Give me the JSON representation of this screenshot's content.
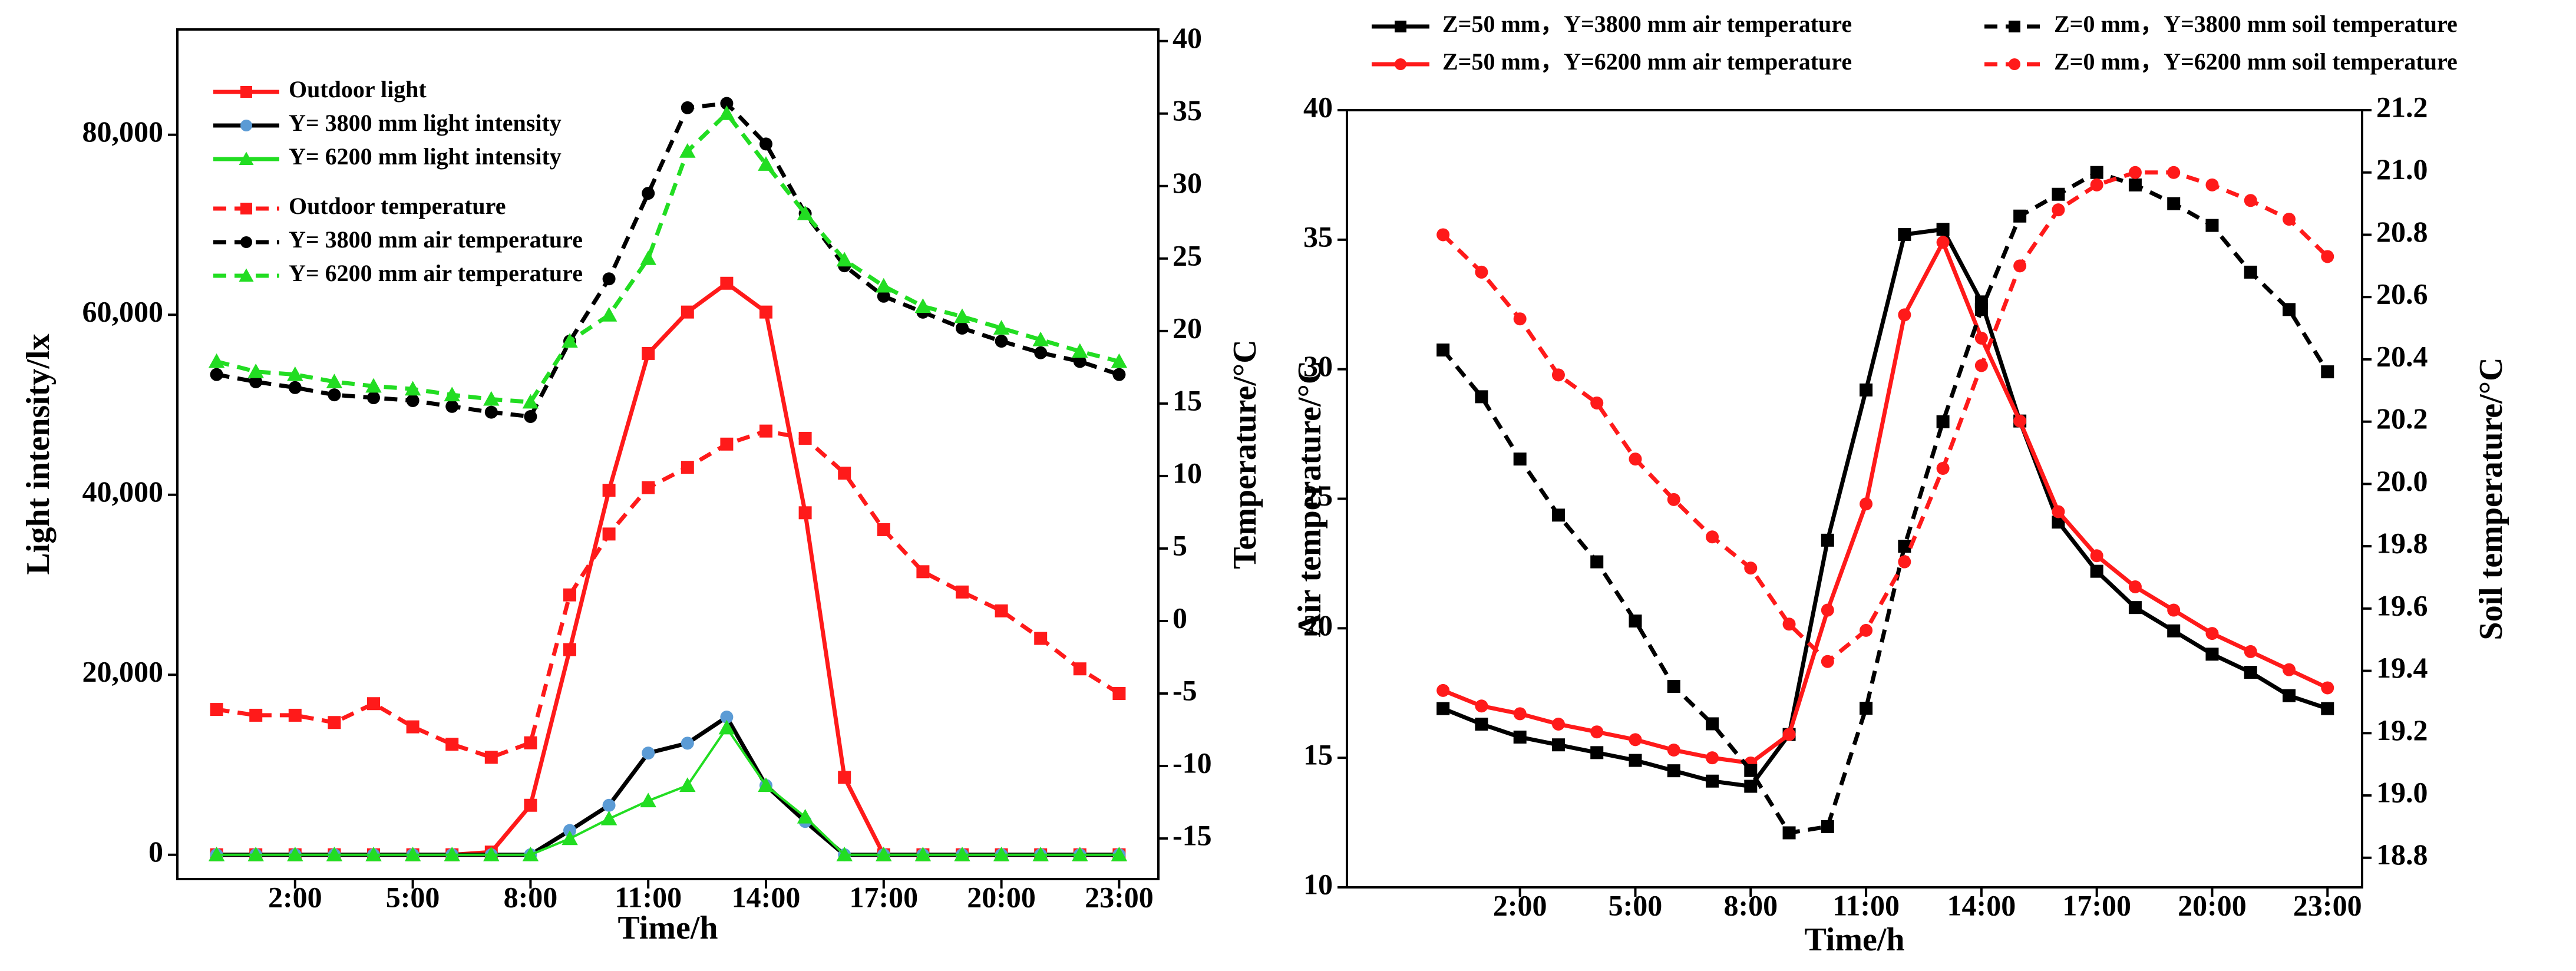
{
  "chart_data": [
    {
      "type": "line",
      "xlabel": "Time/h",
      "ylabel": "Light intensity/lx",
      "y2label": "Temperature/°C",
      "x": [
        0,
        1,
        2,
        3,
        4,
        5,
        6,
        7,
        8,
        9,
        10,
        11,
        12,
        13,
        14,
        15,
        16,
        17,
        18,
        19,
        20,
        21,
        22,
        23
      ],
      "xlim": [
        -1,
        24
      ],
      "xticks": [
        {
          "value": 2,
          "label": "2:00"
        },
        {
          "value": 5,
          "label": "5:00"
        },
        {
          "value": 8,
          "label": "8:00"
        },
        {
          "value": 11,
          "label": "11:00"
        },
        {
          "value": 14,
          "label": "14:00"
        },
        {
          "value": 17,
          "label": "17:00"
        },
        {
          "value": 20,
          "label": "20:00"
        },
        {
          "value": 23,
          "label": "23:00"
        }
      ],
      "ylim": [
        -2700,
        91700
      ],
      "yticks": [
        0,
        {
          "value": 20000,
          "label": "20,000"
        },
        {
          "value": 40000,
          "label": "40,000"
        },
        {
          "value": 60000,
          "label": "60,000"
        },
        {
          "value": 80000,
          "label": "80,000"
        }
      ],
      "y2lim": [
        -17.8,
        40.8
      ],
      "y2ticks": [
        -15,
        -10,
        -5,
        0,
        5,
        10,
        15,
        20,
        25,
        30,
        35,
        40
      ],
      "legend": "upper left",
      "series": [
        {
          "name": "Outdoor light",
          "color": "#ff1a1a",
          "marker": "square",
          "dash": false,
          "values": [
            0,
            0,
            0,
            0,
            0,
            0,
            0,
            300,
            5500,
            22800,
            40500,
            55700,
            60300,
            63500,
            60300,
            38000,
            8600,
            0,
            0,
            0,
            0,
            0,
            0,
            0
          ]
        },
        {
          "name": "Y= 3800 mm light intensity",
          "color": "#000000",
          "marker_color": "#5b9bd5",
          "marker": "circle",
          "dash": false,
          "values": [
            0,
            0,
            0,
            0,
            0,
            0,
            0,
            0,
            0,
            2700,
            5500,
            11300,
            12400,
            15300,
            7700,
            3700,
            0,
            0,
            0,
            0,
            0,
            0,
            0,
            0
          ]
        },
        {
          "name": "Y= 6200 mm light intensity",
          "color": "#22dd22",
          "marker": "triangle",
          "dash": false,
          "values": [
            0,
            0,
            0,
            0,
            0,
            0,
            0,
            0,
            0,
            1800,
            4000,
            6000,
            7700,
            14100,
            7700,
            4200,
            0,
            0,
            0,
            0,
            0,
            0,
            0,
            0
          ]
        },
        {
          "name": "Outdoor temperature",
          "color": "#ff1a1a",
          "marker": "square",
          "dash": true,
          "axis": "y2",
          "values": [
            -6.1,
            -6.5,
            -6.5,
            -7.0,
            -5.7,
            -7.3,
            -8.5,
            -9.4,
            -8.4,
            1.8,
            6.0,
            9.2,
            10.6,
            12.2,
            13.1,
            12.6,
            10.2,
            6.3,
            3.4,
            2.0,
            0.7,
            -1.2,
            -3.3,
            -5.0
          ]
        },
        {
          "name": "Y= 3800 mm air temperature",
          "color": "#000000",
          "marker": "circle",
          "dash": true,
          "axis": "y2",
          "values": [
            17.0,
            16.5,
            16.1,
            15.6,
            15.4,
            15.2,
            14.8,
            14.4,
            14.1,
            19.3,
            23.6,
            29.5,
            35.4,
            35.7,
            32.9,
            28.1,
            24.5,
            22.4,
            21.3,
            20.2,
            19.3,
            18.5,
            17.9,
            17.0
          ]
        },
        {
          "name": "Y= 6200 mm air temperature",
          "color": "#22dd22",
          "marker": "triangle",
          "dash": true,
          "axis": "y2",
          "values": [
            17.9,
            17.2,
            17.0,
            16.5,
            16.2,
            16.0,
            15.6,
            15.3,
            15.1,
            19.3,
            21.1,
            25.0,
            32.4,
            35.0,
            31.5,
            28.1,
            24.9,
            23.1,
            21.7,
            21.0,
            20.2,
            19.4,
            18.6,
            17.9
          ]
        }
      ]
    },
    {
      "type": "line",
      "xlabel": "Time/h",
      "ylabel": "Air temperature/°C",
      "y2label": "Soil temperature/°C",
      "x": [
        0,
        1,
        2,
        3,
        4,
        5,
        6,
        7,
        8,
        9,
        10,
        11,
        12,
        13,
        14,
        15,
        16,
        17,
        18,
        19,
        20,
        21,
        22,
        23
      ],
      "xlim": [
        -2.5,
        23.9
      ],
      "xticks": [
        {
          "value": 2,
          "label": "2:00"
        },
        {
          "value": 5,
          "label": "5:00"
        },
        {
          "value": 8,
          "label": "8:00"
        },
        {
          "value": 11,
          "label": "11:00"
        },
        {
          "value": 14,
          "label": "14:00"
        },
        {
          "value": 17,
          "label": "17:00"
        },
        {
          "value": 20,
          "label": "20:00"
        },
        {
          "value": 23,
          "label": "23:00"
        }
      ],
      "ylim": [
        10,
        40
      ],
      "yticks": [
        10,
        15,
        20,
        25,
        30,
        35,
        40
      ],
      "y2lim": [
        18.705,
        21.2
      ],
      "y2ticks": [
        18.8,
        {
          "value": 19,
          "label": "19.0"
        },
        19.2,
        19.4,
        19.6,
        19.8,
        {
          "value": 20,
          "label": "20.0"
        },
        20.2,
        20.4,
        20.6,
        20.8,
        {
          "value": 21,
          "label": "21.0"
        },
        21.2
      ],
      "legend": "top",
      "series": [
        {
          "name": "Z=50 mm，Y=3800 mm air temperature",
          "color": "#000000",
          "marker": "square",
          "dash": false,
          "values": [
            16.9,
            16.3,
            15.8,
            15.5,
            15.2,
            14.9,
            14.5,
            14.1,
            13.9,
            15.9,
            23.4,
            29.2,
            35.2,
            35.4,
            32.6,
            28.0,
            24.1,
            22.2,
            20.8,
            19.9,
            19.0,
            18.3,
            17.4,
            16.9
          ]
        },
        {
          "name": "Z=50 mm，Y=6200 mm air temperature",
          "color": "#ff1a1a",
          "marker": "circle",
          "dash": false,
          "values": [
            17.6,
            17.0,
            16.7,
            16.3,
            16.0,
            15.7,
            15.3,
            15.0,
            14.8,
            15.9,
            20.7,
            24.8,
            32.1,
            34.9,
            31.2,
            28.0,
            24.5,
            22.8,
            21.6,
            20.7,
            19.8,
            19.1,
            18.4,
            17.7
          ]
        },
        {
          "name": "Z=0 mm，Y=3800 mm soil temperature",
          "color": "#000000",
          "marker": "square",
          "dash": true,
          "axis": "y2",
          "values": [
            20.43,
            20.28,
            20.08,
            19.9,
            19.75,
            19.56,
            19.35,
            19.23,
            19.08,
            18.88,
            18.9,
            19.28,
            19.8,
            20.2,
            20.56,
            20.86,
            20.93,
            21.0,
            20.96,
            20.9,
            20.83,
            20.68,
            20.56,
            20.36
          ]
        },
        {
          "name": "Z=0 mm，Y=6200 mm soil temperature",
          "color": "#ff1a1a",
          "marker": "circle",
          "dash": true,
          "axis": "y2",
          "values": [
            20.8,
            20.68,
            20.53,
            20.35,
            20.26,
            20.08,
            19.95,
            19.83,
            19.73,
            19.55,
            19.43,
            19.53,
            19.75,
            20.05,
            20.38,
            20.7,
            20.88,
            20.96,
            21.0,
            21.0,
            20.96,
            20.91,
            20.85,
            20.73
          ]
        }
      ]
    }
  ]
}
